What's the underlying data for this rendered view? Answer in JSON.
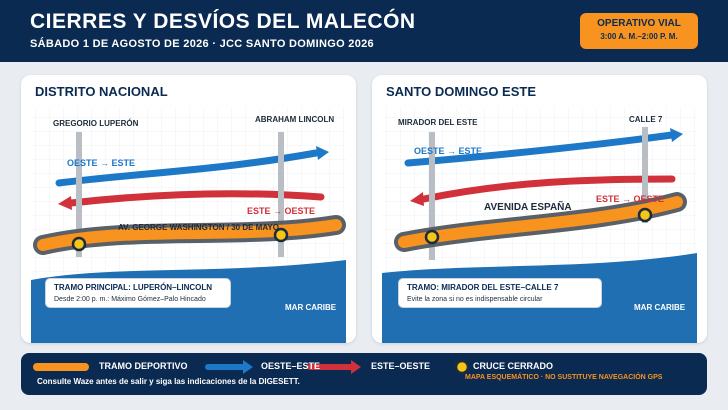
{
  "header": {
    "title": "CIERRES Y DESVÍOS DEL MALECÓN",
    "subtitle": "SÁBADO 1 DE AGOSTO DE 2026 · JCC SANTO DOMINGO 2026",
    "badge_title": "OPERATIVO VIAL",
    "badge_hours": "3:00 A. M.–2:00 P. M."
  },
  "left_panel": {
    "title": "DISTRITO NACIONAL",
    "cross_street_1": "GREGORIO LUPERÓN",
    "cross_street_2": "ABRAHAM LINCOLN",
    "blue_label": "OESTE → ESTE",
    "red_label": "ESTE → OESTE",
    "road_label": "AV. GEORGE WASHINGTON / 30 DE MAYO",
    "info_title": "TRAMO PRINCIPAL: LUPERÓN–LINCOLN",
    "info_sub": "Desde 2:00 p. m.: Máximo Gómez–Palo Hincado",
    "sea_label": "MAR CARIBE"
  },
  "right_panel": {
    "title": "SANTO DOMINGO ESTE",
    "cross_street_1": "MIRADOR DEL ESTE",
    "cross_street_2": "CALLE 7",
    "blue_label": "OESTE → ESTE",
    "red_label": "ESTE → OESTE",
    "road_label": "AVENIDA ESPAÑA",
    "info_title": "TRAMO: MIRADOR DEL ESTE–CALLE 7",
    "info_sub": "Evite la zona si no es indispensable circular",
    "sea_label": "MAR CARIBE"
  },
  "legend": {
    "sport_label": "TRAMO DEPORTIVO",
    "west_east_label": "OESTE–ESTE",
    "east_west_label": "ESTE–OESTE",
    "closed_label": "CRUCE CERRADO",
    "note": "Consulte Waze antes de salir y siga las indicaciones de la DIGESETT.",
    "disclaimer": "MAPA ESQUEMÁTICO · NO SUSTITUYE NAVEGACIÓN GPS"
  },
  "colors": {
    "navy": "#0b2a52",
    "orange": "#f7931e",
    "blue": "#1d78c8",
    "red": "#d1313a",
    "sea": "#1f6fb2",
    "yellow": "#f5c518"
  },
  "icons": [
    "arrow-right-icon",
    "closed-crossing-icon",
    "sport-route-icon"
  ]
}
